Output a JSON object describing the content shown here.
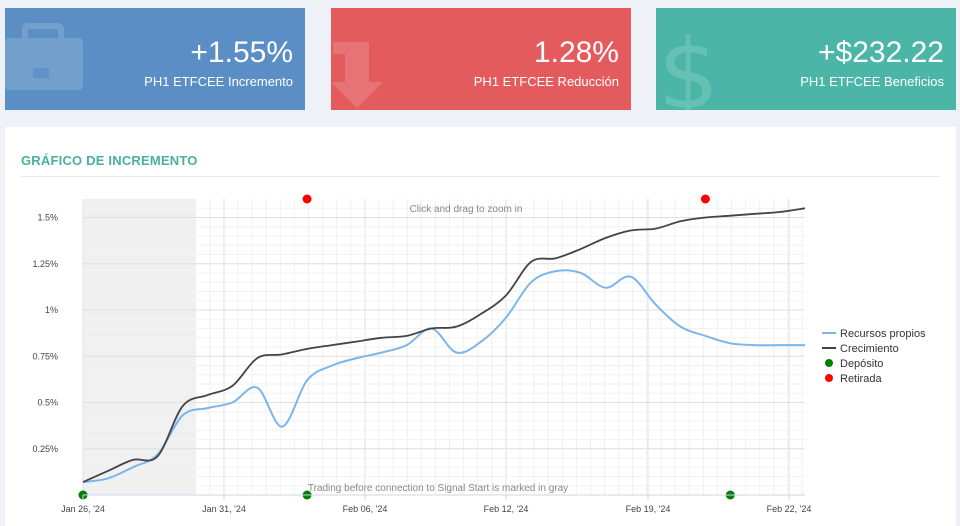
{
  "cards": {
    "increment": {
      "value": "+1.55%",
      "label": "PH1 ETFCEE Incremento",
      "color": "#5b8ec5",
      "icon": "briefcase-icon"
    },
    "decrease": {
      "value": "1.28%",
      "label": "PH1 ETFCEE Reducción",
      "color": "#e45b5e",
      "icon": "arrow-down-icon"
    },
    "profit": {
      "value": "+$232.22",
      "label": "PH1 ETFCEE Beneficios",
      "color": "#4bb6a8",
      "icon": "dollar-icon"
    }
  },
  "panel": {
    "title": "GRÁFICO DE INCREMENTO"
  },
  "chart_data": {
    "type": "line",
    "x_ticks": [
      "Jan 26, '24",
      "Jan 31, '24",
      "Feb 06, '24",
      "Feb 12, '24",
      "Feb 19, '24",
      "Feb 22, '24"
    ],
    "y_ticks": [
      "0.25%",
      "0.5%",
      "0.75%",
      "1%",
      "1.25%",
      "1.5%"
    ],
    "ylim": [
      0,
      1.6
    ],
    "zoom_note": "Click and drag to zoom in",
    "gray_note": "Trading before connection to Signal Start is marked in gray",
    "gray_region": {
      "from": "Jan 26, '24",
      "to": "Jan 30, '24"
    },
    "series": [
      {
        "name": "Recursos propios",
        "color": "#7cb5ec",
        "points": [
          [
            "2024-01-26",
            0.07
          ],
          [
            "2024-01-27",
            0.09
          ],
          [
            "2024-01-28",
            0.15
          ],
          [
            "2024-01-29",
            0.22
          ],
          [
            "2024-01-30",
            0.43
          ],
          [
            "2024-01-31",
            0.47
          ],
          [
            "2024-02-01",
            0.5
          ],
          [
            "2024-02-02",
            0.58
          ],
          [
            "2024-02-03",
            0.37
          ],
          [
            "2024-02-04",
            0.62
          ],
          [
            "2024-02-05",
            0.7
          ],
          [
            "2024-02-06",
            0.74
          ],
          [
            "2024-02-07",
            0.77
          ],
          [
            "2024-02-08",
            0.81
          ],
          [
            "2024-02-09",
            0.9
          ],
          [
            "2024-02-10",
            0.77
          ],
          [
            "2024-02-11",
            0.83
          ],
          [
            "2024-02-12",
            0.96
          ],
          [
            "2024-02-13",
            1.15
          ],
          [
            "2024-02-14",
            1.21
          ],
          [
            "2024-02-15",
            1.2
          ],
          [
            "2024-02-16",
            1.12
          ],
          [
            "2024-02-17",
            1.18
          ],
          [
            "2024-02-18",
            1.03
          ],
          [
            "2024-02-19",
            0.91
          ],
          [
            "2024-02-20",
            0.86
          ],
          [
            "2024-02-21",
            0.82
          ],
          [
            "2024-02-22",
            0.81
          ],
          [
            "2024-02-23",
            0.81
          ],
          [
            "2024-02-24",
            0.81
          ]
        ]
      },
      {
        "name": "Crecimiento",
        "color": "#434348",
        "points": [
          [
            "2024-01-26",
            0.07
          ],
          [
            "2024-01-27",
            0.13
          ],
          [
            "2024-01-28",
            0.19
          ],
          [
            "2024-01-29",
            0.21
          ],
          [
            "2024-01-30",
            0.48
          ],
          [
            "2024-01-31",
            0.54
          ],
          [
            "2024-02-01",
            0.59
          ],
          [
            "2024-02-02",
            0.74
          ],
          [
            "2024-02-03",
            0.76
          ],
          [
            "2024-02-04",
            0.79
          ],
          [
            "2024-02-05",
            0.81
          ],
          [
            "2024-02-06",
            0.83
          ],
          [
            "2024-02-07",
            0.85
          ],
          [
            "2024-02-08",
            0.86
          ],
          [
            "2024-02-09",
            0.9
          ],
          [
            "2024-02-10",
            0.91
          ],
          [
            "2024-02-11",
            0.98
          ],
          [
            "2024-02-12",
            1.08
          ],
          [
            "2024-02-13",
            1.26
          ],
          [
            "2024-02-14",
            1.28
          ],
          [
            "2024-02-15",
            1.33
          ],
          [
            "2024-02-16",
            1.39
          ],
          [
            "2024-02-17",
            1.43
          ],
          [
            "2024-02-18",
            1.44
          ],
          [
            "2024-02-19",
            1.48
          ],
          [
            "2024-02-20",
            1.5
          ],
          [
            "2024-02-21",
            1.51
          ],
          [
            "2024-02-22",
            1.52
          ],
          [
            "2024-02-23",
            1.53
          ],
          [
            "2024-02-24",
            1.55
          ]
        ]
      }
    ],
    "markers": [
      {
        "name": "Depósito",
        "color": "#008000",
        "points": [
          [
            "2024-01-26",
            0
          ],
          [
            "2024-02-04",
            0
          ],
          [
            "2024-02-21",
            0
          ]
        ]
      },
      {
        "name": "Retirada",
        "color": "#ff0000",
        "points": [
          [
            "2024-02-04",
            1.6
          ],
          [
            "2024-02-20",
            1.6
          ]
        ]
      }
    ],
    "legend": [
      "Recursos propios",
      "Crecimiento",
      "Depósito",
      "Retirada"
    ],
    "legend_position": "right"
  }
}
